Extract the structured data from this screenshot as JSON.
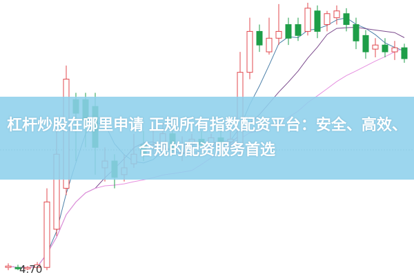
{
  "banner": {
    "title": "杠杆炒股在哪里申请 正规所有指数配资平台：安全、高效、合规的配资服务首选"
  },
  "chart_data": {
    "type": "candlestick",
    "low_label": "4.70",
    "ylim": [
      4.65,
      6.68
    ],
    "colors": {
      "up": "#e0474c",
      "down": "#1e9e48",
      "ma5": "#4b7fa8",
      "ma10": "#7b4a8c",
      "ma20": "#e68fe0",
      "ma_long": "#3c9a3c"
    },
    "moving_averages": [
      5,
      10,
      20
    ],
    "candles": [
      [
        4.72,
        4.75,
        4.7,
        4.73
      ],
      [
        4.72,
        4.74,
        4.7,
        4.71
      ],
      [
        4.71,
        4.73,
        4.7,
        4.72
      ],
      [
        4.72,
        4.76,
        4.7,
        4.74
      ],
      [
        4.72,
        5.3,
        4.7,
        5.2
      ],
      [
        5.0,
        5.75,
        4.95,
        5.55
      ],
      [
        5.3,
        6.2,
        5.25,
        6.1
      ],
      [
        5.95,
        6.0,
        5.5,
        5.85
      ],
      [
        5.95,
        6.0,
        5.6,
        5.8
      ],
      [
        5.9,
        6.0,
        5.4,
        5.6
      ],
      [
        5.45,
        5.6,
        5.35,
        5.5
      ],
      [
        5.5,
        5.55,
        5.3,
        5.38
      ],
      [
        5.4,
        5.55,
        5.35,
        5.45
      ],
      [
        5.48,
        5.7,
        5.45,
        5.55
      ],
      [
        5.62,
        5.72,
        5.5,
        5.55
      ],
      [
        5.6,
        5.75,
        5.55,
        5.62
      ],
      [
        5.62,
        5.78,
        5.58,
        5.7
      ],
      [
        5.7,
        5.75,
        5.55,
        5.58
      ],
      [
        5.56,
        5.68,
        5.5,
        5.62
      ],
      [
        5.62,
        5.7,
        5.58,
        5.66
      ],
      [
        5.66,
        5.72,
        5.6,
        5.62
      ],
      [
        5.62,
        5.7,
        5.58,
        5.67
      ],
      [
        5.67,
        5.75,
        5.62,
        5.64
      ],
      [
        5.64,
        5.72,
        5.6,
        5.66
      ],
      [
        5.6,
        6.3,
        5.55,
        6.15
      ],
      [
        6.15,
        6.55,
        6.1,
        6.45
      ],
      [
        6.45,
        6.5,
        6.3,
        6.35
      ],
      [
        6.3,
        6.55,
        6.28,
        6.4
      ],
      [
        6.4,
        6.65,
        6.35,
        6.45
      ],
      [
        6.5,
        6.55,
        6.35,
        6.4
      ],
      [
        6.5,
        6.55,
        6.38,
        6.42
      ],
      [
        6.45,
        6.66,
        6.42,
        6.62
      ],
      [
        6.6,
        6.64,
        6.4,
        6.45
      ],
      [
        6.5,
        6.6,
        6.45,
        6.58
      ],
      [
        6.55,
        6.64,
        6.5,
        6.6
      ],
      [
        6.58,
        6.62,
        6.45,
        6.5
      ],
      [
        6.5,
        6.55,
        6.32,
        6.38
      ],
      [
        6.42,
        6.46,
        6.25,
        6.3
      ],
      [
        6.32,
        6.4,
        6.26,
        6.35
      ],
      [
        6.35,
        6.4,
        6.26,
        6.3
      ],
      [
        6.3,
        6.38,
        6.24,
        6.33
      ],
      [
        6.33,
        6.36,
        6.22,
        6.25
      ]
    ]
  }
}
